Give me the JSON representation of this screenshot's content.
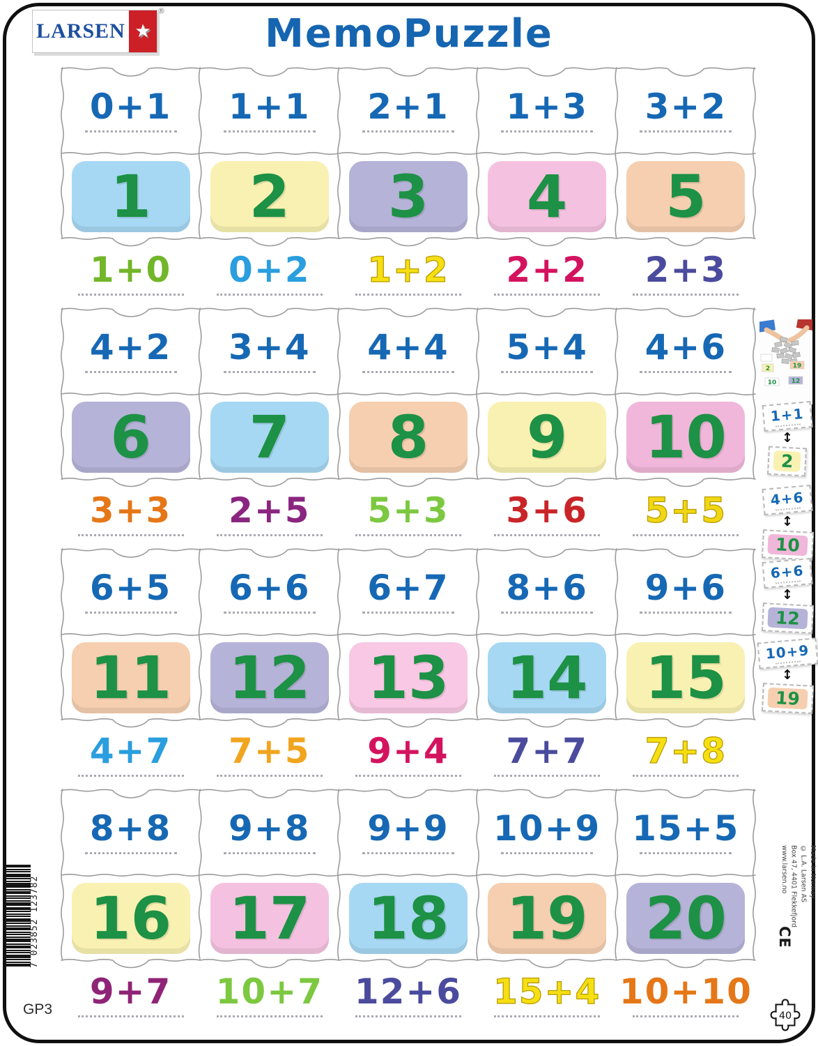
{
  "header": {
    "brand": "LARSEN",
    "registered": "®",
    "star_icon": "★",
    "title": "MemoPuzzle"
  },
  "colors": {
    "problem_blue": "#1668b4",
    "tile_green": "#1d9145",
    "title_blue": "#1565b0",
    "cutline": "#9b9b9b"
  },
  "blocks": [
    {
      "top": [
        "0+1",
        "1+1",
        "2+1",
        "1+3",
        "3+2"
      ],
      "tiles": [
        {
          "value": "1",
          "bg": "#a7d8f3"
        },
        {
          "value": "2",
          "bg": "#f9f1b2"
        },
        {
          "value": "3",
          "bg": "#b5b3d8"
        },
        {
          "value": "4",
          "bg": "#f4c2e0"
        },
        {
          "value": "5",
          "bg": "#f5cfb0"
        }
      ],
      "bottom": [
        {
          "text": "1+0",
          "color": "#72b62a"
        },
        {
          "text": "0+2",
          "color": "#2a9ede"
        },
        {
          "text": "1+2",
          "color": "#f6df12",
          "stroke": "#b89c00"
        },
        {
          "text": "2+2",
          "color": "#d4135f"
        },
        {
          "text": "2+3",
          "color": "#4b4b9e"
        }
      ]
    },
    {
      "top": [
        "4+2",
        "3+4",
        "4+4",
        "5+4",
        "4+6"
      ],
      "tiles": [
        {
          "value": "6",
          "bg": "#b5b3d8"
        },
        {
          "value": "7",
          "bg": "#a7d8f3"
        },
        {
          "value": "8",
          "bg": "#f5cfb0"
        },
        {
          "value": "9",
          "bg": "#f9f1b2"
        },
        {
          "value": "10",
          "bg": "#f0b7da"
        }
      ],
      "bottom": [
        {
          "text": "3+3",
          "color": "#e57718"
        },
        {
          "text": "2+5",
          "color": "#8a2580"
        },
        {
          "text": "5+3",
          "color": "#7cc840"
        },
        {
          "text": "3+6",
          "color": "#c92528"
        },
        {
          "text": "5+5",
          "color": "#f0d713",
          "stroke": "#b89c00"
        }
      ]
    },
    {
      "top": [
        "6+5",
        "6+6",
        "6+7",
        "8+6",
        "9+6"
      ],
      "tiles": [
        {
          "value": "11",
          "bg": "#f5cfb0"
        },
        {
          "value": "12",
          "bg": "#b5b3d8"
        },
        {
          "value": "13",
          "bg": "#f8c8e4"
        },
        {
          "value": "14",
          "bg": "#a7d8f3"
        },
        {
          "value": "15",
          "bg": "#f9f1b2"
        }
      ],
      "bottom": [
        {
          "text": "4+7",
          "color": "#2a9ede"
        },
        {
          "text": "7+5",
          "color": "#f1a51f"
        },
        {
          "text": "9+4",
          "color": "#d4135f"
        },
        {
          "text": "7+7",
          "color": "#4b4b9e"
        },
        {
          "text": "7+8",
          "color": "#f6df12",
          "stroke": "#b89c00"
        }
      ]
    },
    {
      "top": [
        "8+8",
        "9+8",
        "9+9",
        "10+9",
        "15+5"
      ],
      "tiles": [
        {
          "value": "16",
          "bg": "#f9f1b2"
        },
        {
          "value": "17",
          "bg": "#f4c2e0"
        },
        {
          "value": "18",
          "bg": "#a7d8f3"
        },
        {
          "value": "19",
          "bg": "#f5cfb0"
        },
        {
          "value": "20",
          "bg": "#b5b3d8"
        }
      ],
      "bottom": [
        {
          "text": "9+7",
          "color": "#8f2376"
        },
        {
          "text": "10+7",
          "color": "#7cc840"
        },
        {
          "text": "12+6",
          "color": "#4b4b9e"
        },
        {
          "text": "15+4",
          "color": "#f6df12",
          "stroke": "#b89c00"
        },
        {
          "text": "10+10",
          "color": "#e57718"
        }
      ]
    }
  ],
  "sidebar": {
    "thumbnail_numbers": [
      "2",
      "19",
      "10",
      "12"
    ],
    "examples": [
      {
        "problem": "1+1",
        "answer": "2",
        "answer_bg": "#f9f1b2"
      },
      {
        "problem": "4+6",
        "answer": "10",
        "answer_bg": "#f0b7da"
      },
      {
        "problem": "6+6",
        "answer": "12",
        "answer_bg": "#b5b3d8"
      },
      {
        "problem": "10+9",
        "answer": "19",
        "answer_bg": "#f5cfb0"
      }
    ]
  },
  "footer": {
    "product_code": "GP3",
    "barcode": "7 023852 123782",
    "piece_count": "40",
    "ce": "CE",
    "made_in_lines": {
      "l1": "Made in Norway",
      "l2": "© L.A. Larsen AS",
      "l3": "Box 47, 4401 Flekkefjord",
      "l4": "www.larsen.no"
    }
  }
}
